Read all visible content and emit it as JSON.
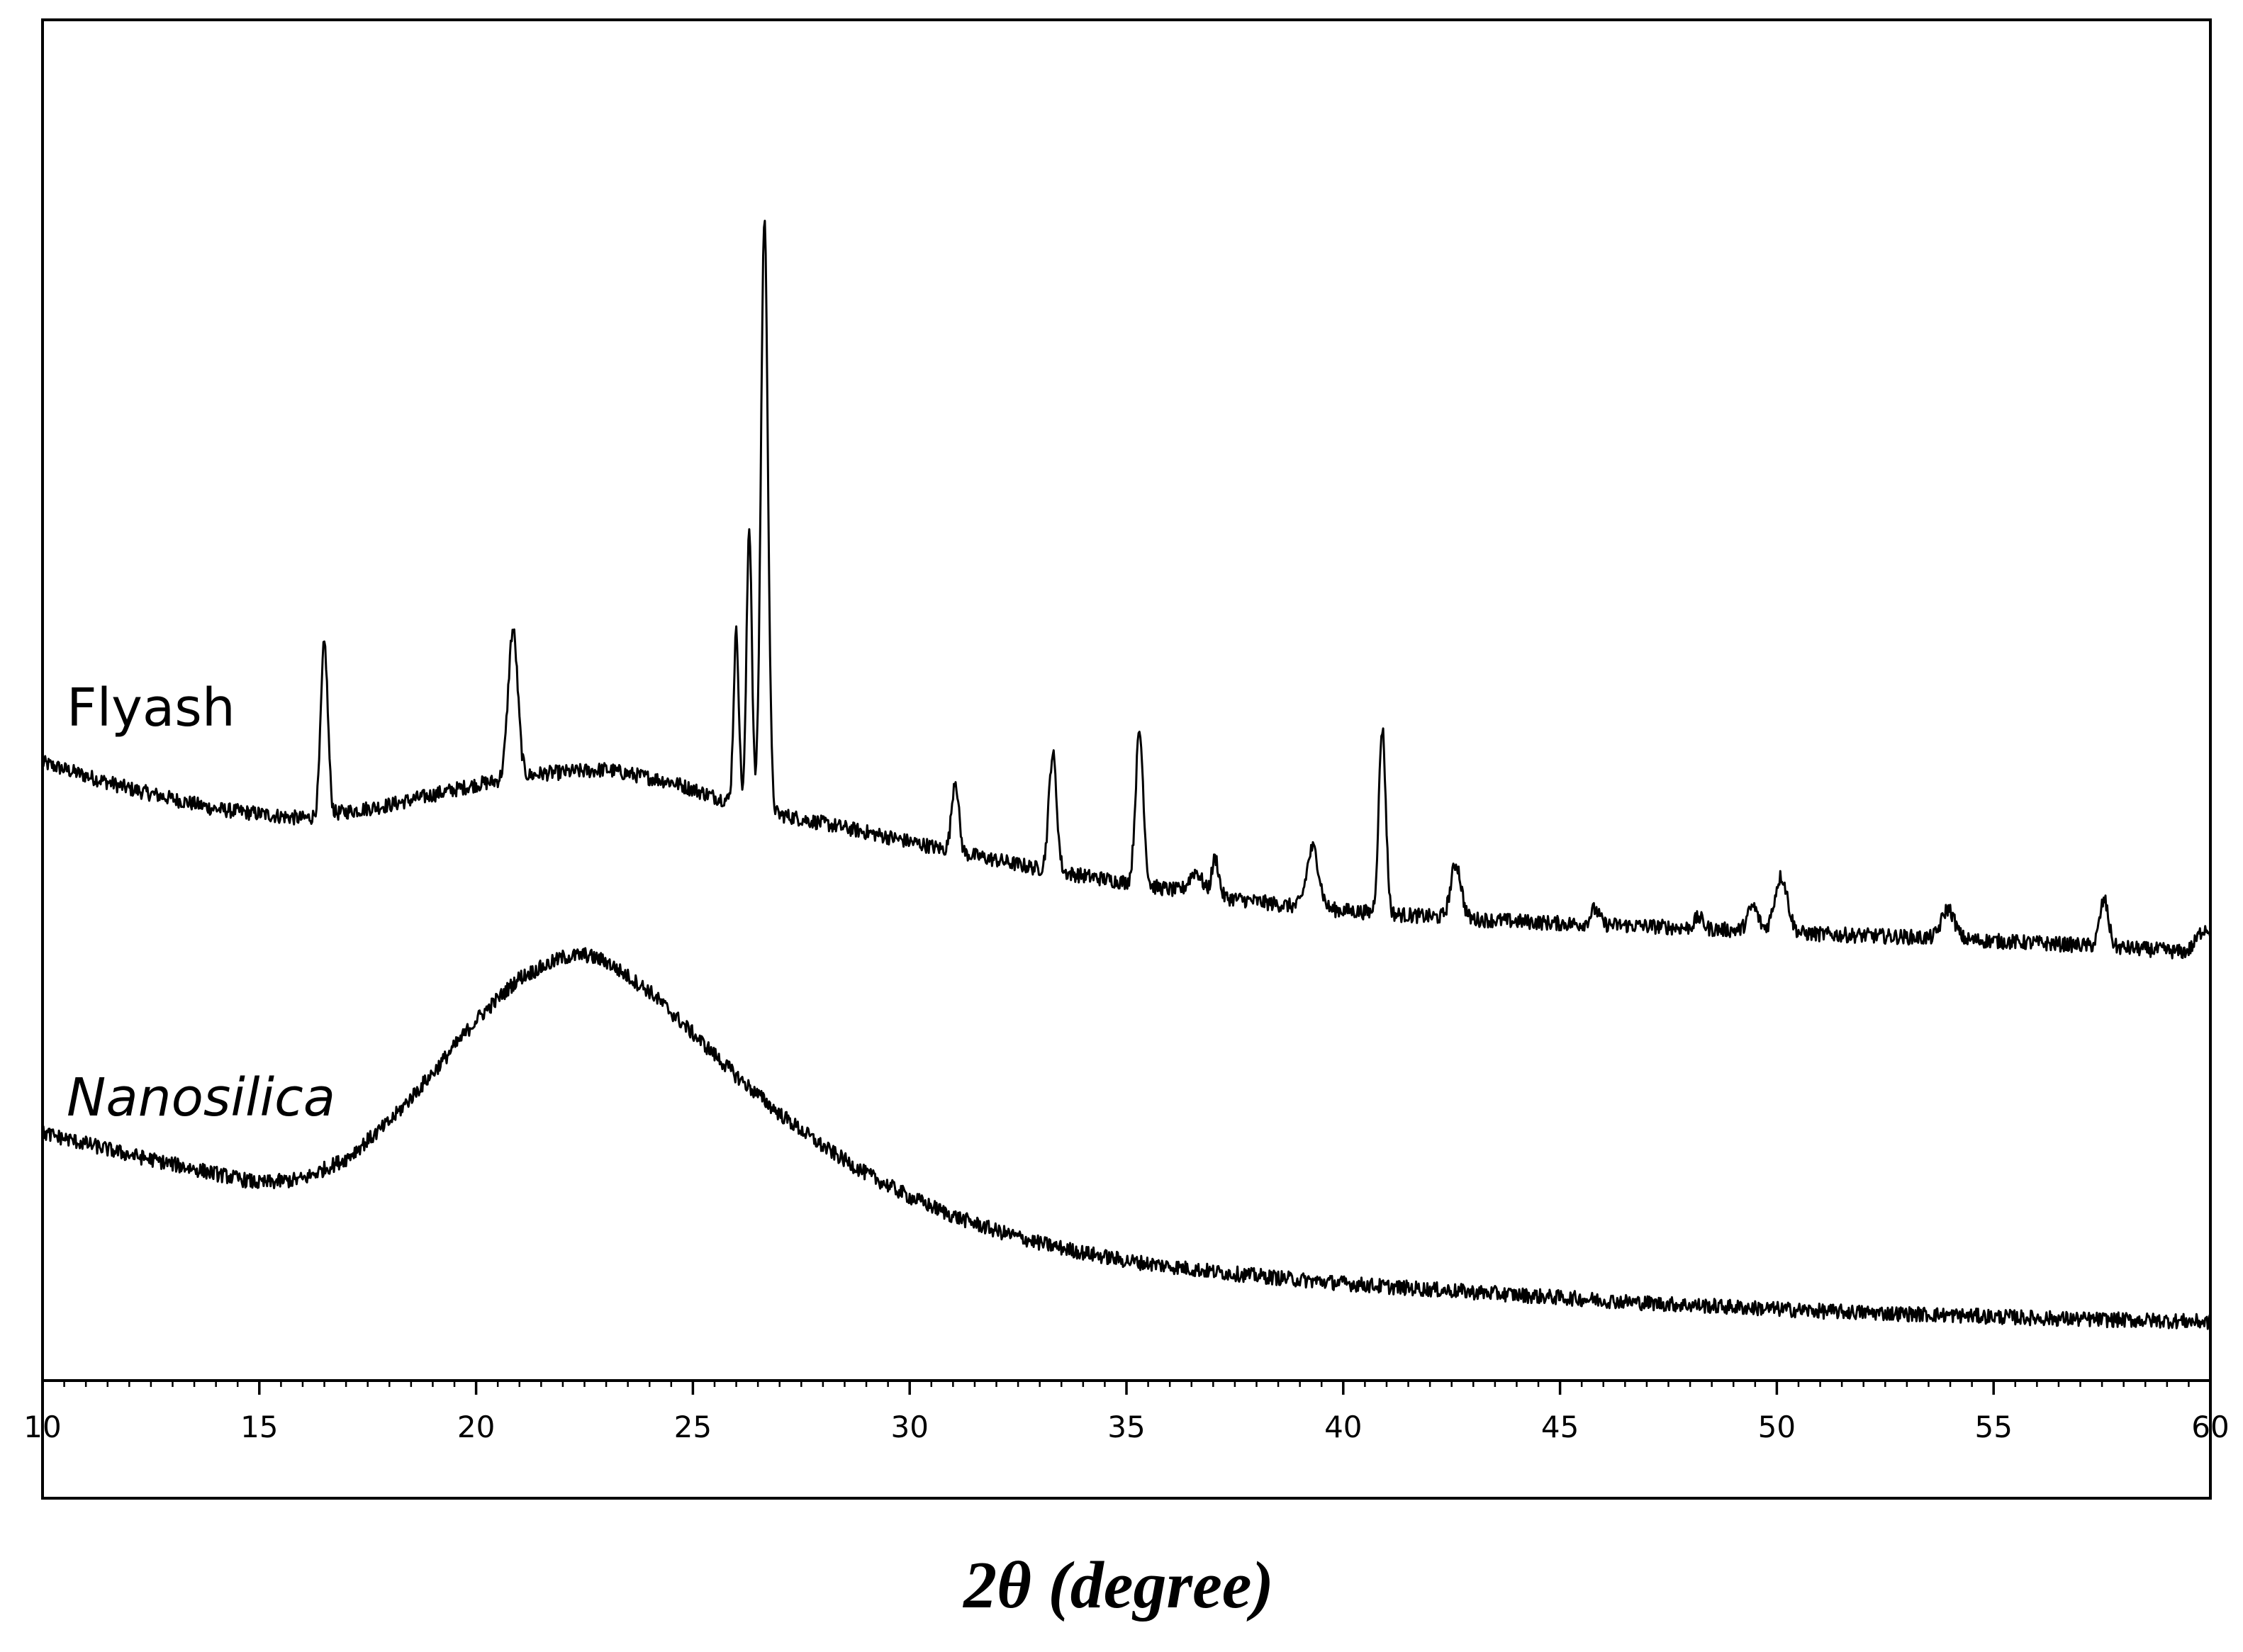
{
  "chart_data": {
    "type": "line",
    "title": "",
    "xlabel": "2θ (degree)",
    "ylabel": "",
    "xlim": [
      10,
      60
    ],
    "xticks": [
      10,
      15,
      20,
      25,
      30,
      35,
      40,
      45,
      50,
      55,
      60
    ],
    "minor_tick_step": 0.5,
    "ylim": [
      0,
      100
    ],
    "yaxis_visible": false,
    "grid": false,
    "legend": "none",
    "line_color": "#000000",
    "series": [
      {
        "name": "Flyash",
        "label_italic": false,
        "baseline": [
          [
            10,
            45.4
          ],
          [
            12,
            43.5
          ],
          [
            14,
            42.0
          ],
          [
            16,
            41.3
          ],
          [
            18,
            42.3
          ],
          [
            20,
            43.8
          ],
          [
            21.5,
            44.6
          ],
          [
            23,
            44.9
          ],
          [
            24.5,
            44.0
          ],
          [
            25.5,
            42.9
          ],
          [
            27,
            41.6
          ],
          [
            29,
            40.3
          ],
          [
            31,
            38.9
          ],
          [
            33,
            37.6
          ],
          [
            35,
            36.6
          ],
          [
            37,
            35.6
          ],
          [
            39,
            34.8
          ],
          [
            41,
            34.3
          ],
          [
            43,
            33.9
          ],
          [
            45,
            33.6
          ],
          [
            47,
            33.4
          ],
          [
            49,
            33.1
          ],
          [
            51,
            32.8
          ],
          [
            53,
            32.6
          ],
          [
            55,
            32.3
          ],
          [
            57,
            32.0
          ],
          [
            59,
            31.6
          ],
          [
            60,
            31.2
          ]
        ],
        "peaks": [
          {
            "x": 16.5,
            "height": 12.6,
            "width": 0.08
          },
          {
            "x": 20.85,
            "height": 10.9,
            "width": 0.11
          },
          {
            "x": 26.0,
            "height": 12.5,
            "width": 0.06
          },
          {
            "x": 26.3,
            "height": 20.6,
            "width": 0.06
          },
          {
            "x": 26.65,
            "height": 43.5,
            "width": 0.08
          },
          {
            "x": 31.05,
            "height": 5.3,
            "width": 0.08
          },
          {
            "x": 33.3,
            "height": 8.6,
            "width": 0.09
          },
          {
            "x": 35.3,
            "height": 11.2,
            "width": 0.09
          },
          {
            "x": 36.6,
            "height": 1.6,
            "width": 0.15
          },
          {
            "x": 37.05,
            "height": 2.8,
            "width": 0.08
          },
          {
            "x": 39.3,
            "height": 4.4,
            "width": 0.14
          },
          {
            "x": 40.9,
            "height": 13.6,
            "width": 0.08
          },
          {
            "x": 42.6,
            "height": 4.0,
            "width": 0.12
          },
          {
            "x": 45.8,
            "height": 1.1,
            "width": 0.1
          },
          {
            "x": 48.2,
            "height": 0.8,
            "width": 0.1
          },
          {
            "x": 49.45,
            "height": 1.8,
            "width": 0.12
          },
          {
            "x": 50.1,
            "height": 4.1,
            "width": 0.15
          },
          {
            "x": 53.95,
            "height": 2.2,
            "width": 0.15
          },
          {
            "x": 57.55,
            "height": 3.4,
            "width": 0.1
          },
          {
            "x": 59.9,
            "height": 2.0,
            "width": 0.2
          }
        ]
      },
      {
        "name": "Nanosilica",
        "label_italic": true,
        "baseline": [
          [
            10,
            18.2
          ],
          [
            12,
            16.6
          ],
          [
            14,
            15.2
          ],
          [
            15,
            14.5
          ],
          [
            16,
            14.8
          ],
          [
            17,
            16.3
          ],
          [
            18,
            19.0
          ],
          [
            19,
            22.6
          ],
          [
            20,
            26.5
          ],
          [
            21,
            29.6
          ],
          [
            22,
            31.1
          ],
          [
            22.5,
            31.3
          ],
          [
            23,
            30.8
          ],
          [
            24,
            28.6
          ],
          [
            25,
            25.5
          ],
          [
            26,
            22.4
          ],
          [
            27,
            19.6
          ],
          [
            28,
            17.2
          ],
          [
            29,
            15.2
          ],
          [
            30,
            13.5
          ],
          [
            31,
            12.1
          ],
          [
            32,
            11.0
          ],
          [
            33,
            10.1
          ],
          [
            34,
            9.4
          ],
          [
            35,
            8.8
          ],
          [
            37,
            8.0
          ],
          [
            39,
            7.4
          ],
          [
            41,
            6.9
          ],
          [
            43,
            6.5
          ],
          [
            45,
            6.1
          ],
          [
            47,
            5.7
          ],
          [
            49,
            5.4
          ],
          [
            51,
            5.1
          ],
          [
            53,
            4.9
          ],
          [
            55,
            4.7
          ],
          [
            57,
            4.5
          ],
          [
            59,
            4.4
          ],
          [
            60,
            4.3
          ]
        ],
        "peaks": []
      }
    ]
  }
}
